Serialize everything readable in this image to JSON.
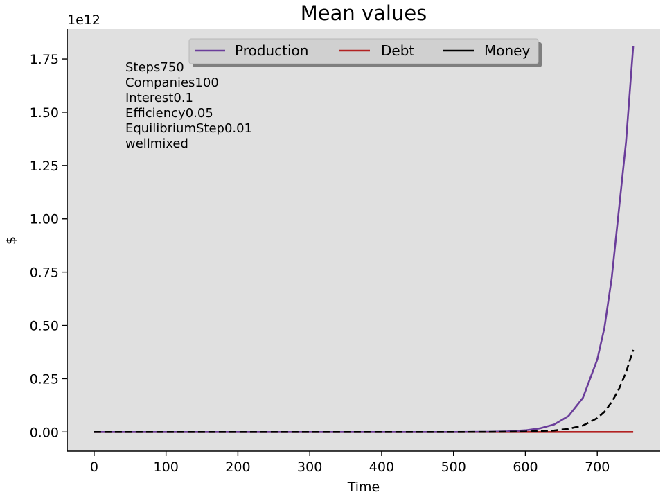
{
  "chart_data": {
    "type": "line",
    "title": "Mean values",
    "xlabel": "Time",
    "ylabel": "$",
    "y_offset_text": "1e12",
    "xlim": [
      -37.5,
      787.5
    ],
    "ylim": [
      -0.09,
      1.89
    ],
    "y_scale_factor": 1000000000000.0,
    "xticks": [
      0,
      100,
      200,
      300,
      400,
      500,
      600,
      700
    ],
    "xtick_labels": [
      "0",
      "100",
      "200",
      "300",
      "400",
      "500",
      "600",
      "700"
    ],
    "yticks": [
      0.0,
      0.25,
      0.5,
      0.75,
      1.0,
      1.25,
      1.5,
      1.75
    ],
    "ytick_labels": [
      "0.00",
      "0.25",
      "0.50",
      "0.75",
      "1.00",
      "1.25",
      "1.50",
      "1.75"
    ],
    "grid": false,
    "background": "#e0e0e0",
    "legend": {
      "placement": "upper center",
      "ncol": 3,
      "entries": [
        "Production",
        "Debt",
        "Money"
      ]
    },
    "annotation_lines": [
      "Steps750",
      "Companies100",
      "Interest0.1",
      "Efficiency0.05",
      "EquilibriumStep0.01",
      "wellmixed"
    ],
    "series": [
      {
        "name": "Production",
        "color": "#6a3d9a",
        "dash": "solid",
        "x": [
          0,
          100,
          200,
          300,
          400,
          500,
          550,
          575,
          600,
          620,
          640,
          660,
          680,
          700,
          710,
          720,
          730,
          740,
          750
        ],
        "y": [
          0,
          0,
          0,
          0,
          0,
          0,
          0.001,
          0.003,
          0.008,
          0.017,
          0.035,
          0.075,
          0.16,
          0.34,
          0.49,
          0.72,
          1.04,
          1.36,
          1.81
        ]
      },
      {
        "name": "Debt",
        "color": "#b22222",
        "dash": "solid",
        "x": [
          0,
          750
        ],
        "y": [
          0,
          0
        ]
      },
      {
        "name": "Money",
        "color": "#000000",
        "dash": "dashed",
        "x": [
          0,
          100,
          200,
          300,
          400,
          500,
          550,
          600,
          640,
          660,
          680,
          700,
          710,
          720,
          730,
          740,
          750
        ],
        "y": [
          0,
          0,
          0,
          0,
          0,
          0,
          0.0005,
          0.002,
          0.007,
          0.015,
          0.03,
          0.065,
          0.095,
          0.14,
          0.2,
          0.28,
          0.385
        ]
      }
    ]
  }
}
